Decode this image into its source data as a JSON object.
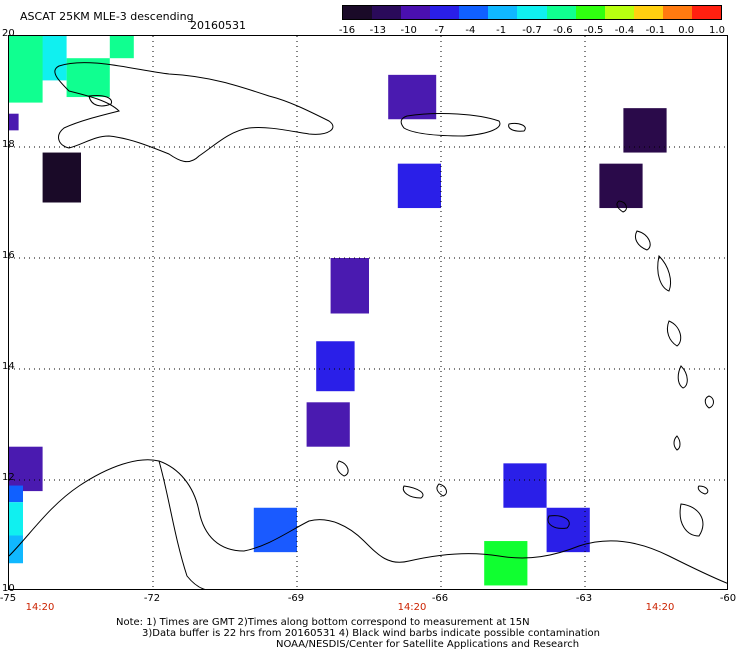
{
  "header": {
    "title": "ASCAT 25KM MLE-3 descending",
    "date": "20160531"
  },
  "colorbar": {
    "labels": [
      "-16",
      "-13",
      "-10",
      "-7",
      "-4",
      "-1",
      "-0.7",
      "-0.6",
      "-0.5",
      "-0.4",
      "-0.1",
      "0.0",
      "1.0"
    ],
    "colors": [
      "#1a0a28",
      "#2a0a5a",
      "#4a0fb0",
      "#2a1fe8",
      "#1060ff",
      "#10b8ff",
      "#10f0f0",
      "#10ff90",
      "#30ff10",
      "#b8ff10",
      "#ffd010",
      "#ff7a10",
      "#ff2010"
    ]
  },
  "map": {
    "x_ticks": [
      "-75",
      "-72",
      "-69",
      "-66",
      "-63",
      "-60"
    ],
    "y_ticks": [
      "20",
      "18",
      "16",
      "14",
      "12",
      "10"
    ],
    "times": [
      "14:20",
      "14:20",
      "14:20"
    ],
    "cells": [
      {
        "lon_min": -74.3,
        "lon_max": -73.5,
        "lat_min": 17.0,
        "lat_max": 17.9,
        "color": "#1a0a28"
      },
      {
        "lon_min": -72.9,
        "lon_max": -72.4,
        "lat_min": 19.6,
        "lat_max": 20.0,
        "color": "#10ff90"
      },
      {
        "lon_min": -67.1,
        "lon_max": -66.1,
        "lat_min": 18.5,
        "lat_max": 19.3,
        "color": "#4a1ab0"
      },
      {
        "lon_min": -62.2,
        "lon_max": -61.3,
        "lat_min": 17.9,
        "lat_max": 18.7,
        "color": "#2a0a4a"
      },
      {
        "lon_min": -62.7,
        "lon_max": -61.8,
        "lat_min": 16.9,
        "lat_max": 17.7,
        "color": "#2a0a4a"
      },
      {
        "lon_min": -66.9,
        "lon_max": -66.0,
        "lat_min": 16.9,
        "lat_max": 17.7,
        "color": "#2a1fe8"
      },
      {
        "lon_min": -68.3,
        "lon_max": -67.5,
        "lat_min": 15.0,
        "lat_max": 16.0,
        "color": "#4a1ab0"
      },
      {
        "lon_min": -68.6,
        "lon_max": -67.8,
        "lat_min": 13.6,
        "lat_max": 14.5,
        "color": "#2a1fe8"
      },
      {
        "lon_min": -68.8,
        "lon_max": -67.9,
        "lat_min": 12.6,
        "lat_max": 13.4,
        "color": "#4a1ab0"
      },
      {
        "lon_min": -75.0,
        "lon_max": -74.3,
        "lat_min": 11.8,
        "lat_max": 12.6,
        "color": "#4a1ab0"
      },
      {
        "lon_min": -64.7,
        "lon_max": -63.8,
        "lat_min": 11.5,
        "lat_max": 12.3,
        "color": "#2a1fe8"
      },
      {
        "lon_min": -63.8,
        "lon_max": -62.9,
        "lat_min": 10.7,
        "lat_max": 11.5,
        "color": "#2a1fe8"
      },
      {
        "lon_min": -69.9,
        "lon_max": -69.0,
        "lat_min": 10.7,
        "lat_max": 11.5,
        "color": "#1a5aff"
      },
      {
        "lon_min": -65.1,
        "lon_max": -64.2,
        "lat_min": 10.1,
        "lat_max": 10.9,
        "color": "#10ff30"
      }
    ]
  },
  "notes": {
    "line1": "Note: 1) Times are GMT 2)Times along bottom correspond to measurement at 15N",
    "line2": "3)Data buffer is 22 hrs from 20160531 4) Black wind barbs indicate possible contamination",
    "line3": "NOAA/NESDIS/Center for Satellite Applications and Research"
  }
}
